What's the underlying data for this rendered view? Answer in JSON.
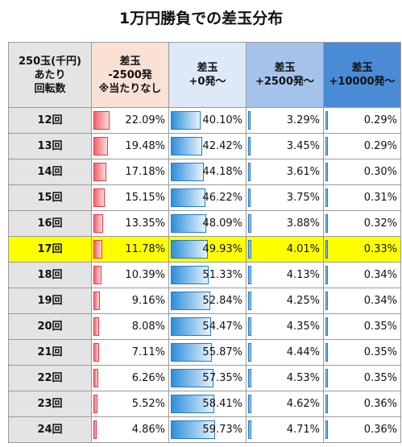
{
  "title": "1万円勝負での差玉分布",
  "colors": {
    "neg": "#e23a44",
    "pos": "#1f7bc8",
    "highlight": "#ffff00"
  },
  "headers": [
    [
      "250玉(千円)",
      "あたり",
      "回転数"
    ],
    [
      "差玉",
      "-2500発",
      "※当たりなし"
    ],
    [
      "差玉",
      "+0発～"
    ],
    [
      "差玉",
      "+2500発～"
    ],
    [
      "差玉",
      "+10000発～"
    ]
  ],
  "highlight_row": "17回",
  "rows": [
    {
      "label": "12回",
      "cells": [
        "22.09%",
        "40.10%",
        "3.29%",
        "0.29%"
      ]
    },
    {
      "label": "13回",
      "cells": [
        "19.48%",
        "42.42%",
        "3.45%",
        "0.29%"
      ]
    },
    {
      "label": "14回",
      "cells": [
        "17.18%",
        "44.18%",
        "3.61%",
        "0.30%"
      ]
    },
    {
      "label": "15回",
      "cells": [
        "15.15%",
        "46.22%",
        "3.75%",
        "0.31%"
      ]
    },
    {
      "label": "16回",
      "cells": [
        "13.35%",
        "48.09%",
        "3.88%",
        "0.32%"
      ]
    },
    {
      "label": "17回",
      "cells": [
        "11.78%",
        "49.93%",
        "4.01%",
        "0.33%"
      ]
    },
    {
      "label": "18回",
      "cells": [
        "10.39%",
        "51.33%",
        "4.13%",
        "0.34%"
      ]
    },
    {
      "label": "19回",
      "cells": [
        "9.16%",
        "52.84%",
        "4.25%",
        "0.34%"
      ]
    },
    {
      "label": "20回",
      "cells": [
        "8.08%",
        "54.47%",
        "4.35%",
        "0.35%"
      ]
    },
    {
      "label": "21回",
      "cells": [
        "7.11%",
        "55.87%",
        "4.44%",
        "0.35%"
      ]
    },
    {
      "label": "22回",
      "cells": [
        "6.26%",
        "57.35%",
        "4.53%",
        "0.35%"
      ]
    },
    {
      "label": "23回",
      "cells": [
        "5.52%",
        "58.41%",
        "4.62%",
        "0.36%"
      ]
    },
    {
      "label": "24回",
      "cells": [
        "4.86%",
        "59.73%",
        "4.71%",
        "0.36%"
      ]
    }
  ],
  "chart_data": {
    "type": "table",
    "title": "1万円勝負での差玉分布",
    "categories": [
      "12回",
      "13回",
      "14回",
      "15回",
      "16回",
      "17回",
      "18回",
      "19回",
      "20回",
      "21回",
      "22回",
      "23回",
      "24回"
    ],
    "series": [
      {
        "name": "差玉 -2500発 ※当たりなし",
        "values": [
          22.09,
          19.48,
          17.18,
          15.15,
          13.35,
          11.78,
          10.39,
          9.16,
          8.08,
          7.11,
          6.26,
          5.52,
          4.86
        ]
      },
      {
        "name": "差玉 +0発～",
        "values": [
          40.1,
          42.42,
          44.18,
          46.22,
          48.09,
          49.93,
          51.33,
          52.84,
          54.47,
          55.87,
          57.35,
          58.41,
          59.73
        ]
      },
      {
        "name": "差玉 +2500発～",
        "values": [
          3.29,
          3.45,
          3.61,
          3.75,
          3.88,
          4.01,
          4.13,
          4.25,
          4.35,
          4.44,
          4.53,
          4.62,
          4.71
        ]
      },
      {
        "name": "差玉 +10000発～",
        "values": [
          0.29,
          0.29,
          0.3,
          0.31,
          0.32,
          0.33,
          0.34,
          0.34,
          0.35,
          0.35,
          0.35,
          0.36,
          0.36
        ]
      }
    ]
  }
}
